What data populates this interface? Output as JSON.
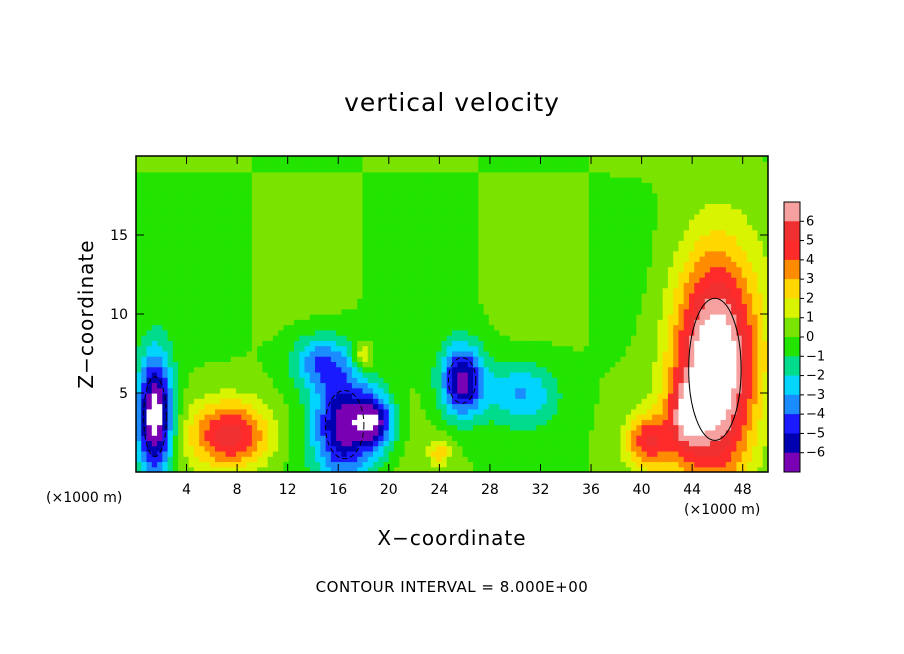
{
  "chart_data": {
    "type": "heatmap",
    "title": "vertical velocity",
    "xlabel": "X−coordinate",
    "ylabel": "Z−coordinate",
    "x_unit_label": "(×1000 m)",
    "x_unit_label_right": "(×1000 m)",
    "footer": "CONTOUR INTERVAL = 8.000E+00",
    "xlim": [
      0,
      50
    ],
    "ylim": [
      0,
      20
    ],
    "xticks": [
      4,
      8,
      12,
      16,
      20,
      24,
      28,
      32,
      36,
      40,
      44,
      48
    ],
    "xtick_labels": [
      "4",
      "8",
      "12",
      "16",
      "20",
      "24",
      "28",
      "32",
      "36",
      "40",
      "44",
      "48"
    ],
    "yticks": [
      5,
      10,
      15
    ],
    "ytick_labels": [
      "5",
      "10",
      "15"
    ],
    "colorbar": {
      "levels": [
        6,
        5,
        4,
        3,
        2,
        1,
        0,
        -1,
        -2,
        -3,
        -4,
        -5,
        -6
      ],
      "labels": [
        "6",
        "5",
        "4",
        "3",
        "2",
        "1",
        "0",
        "−1",
        "−2",
        "−3",
        "−4",
        "−5",
        "−6"
      ],
      "colors": [
        "#f7a0a0",
        "#f03030",
        "#ff2a2a",
        "#ff8c00",
        "#ffd800",
        "#d8f400",
        "#7ae400",
        "#22e400",
        "#00dc8c",
        "#00d4ff",
        "#1a8cff",
        "#1a1aff",
        "#0000b0",
        "#7a00b4"
      ]
    },
    "features": [
      {
        "kind": "updraft",
        "x": 1.5,
        "z": 3.5,
        "value": -8,
        "sigma": [
          1.0,
          2.8
        ]
      },
      {
        "kind": "updraft",
        "x": 7.5,
        "z": 2.4,
        "value": 5.5,
        "sigma": [
          2.2,
          1.5
        ]
      },
      {
        "kind": "downdraft",
        "x": 16.5,
        "z": 3.0,
        "value": -6.5,
        "sigma": [
          1.7,
          2.4
        ]
      },
      {
        "kind": "downdraft",
        "x": 19.0,
        "z": 3.2,
        "value": -5.0,
        "sigma": [
          1.0,
          1.2
        ]
      },
      {
        "kind": "downdraft",
        "x": 25.8,
        "z": 5.8,
        "value": -6.5,
        "sigma": [
          1.2,
          1.6
        ]
      },
      {
        "kind": "updraft",
        "x": 45.8,
        "z": 6.5,
        "value": 9.0,
        "sigma": [
          2.3,
          5.0
        ]
      },
      {
        "kind": "updraft",
        "x": 40.5,
        "z": 2.0,
        "value": 4.5,
        "sigma": [
          1.2,
          1.2
        ]
      },
      {
        "kind": "updraft",
        "x": 43.5,
        "z": 3.5,
        "value": 3.5,
        "sigma": [
          1.0,
          1.6
        ]
      },
      {
        "kind": "updraft",
        "x": 18.0,
        "z": 7.3,
        "value": 3.0,
        "sigma": [
          0.5,
          0.6
        ]
      },
      {
        "kind": "downdraft",
        "x": 14.5,
        "z": 7.0,
        "value": -3.5,
        "sigma": [
          1.6,
          1.2
        ]
      },
      {
        "kind": "downdraft",
        "x": 30.5,
        "z": 5.0,
        "value": -3.0,
        "sigma": [
          2.0,
          1.4
        ]
      },
      {
        "kind": "updraft",
        "x": 24.0,
        "z": 1.3,
        "value": 2.5,
        "sigma": [
          0.6,
          0.6
        ]
      }
    ]
  }
}
